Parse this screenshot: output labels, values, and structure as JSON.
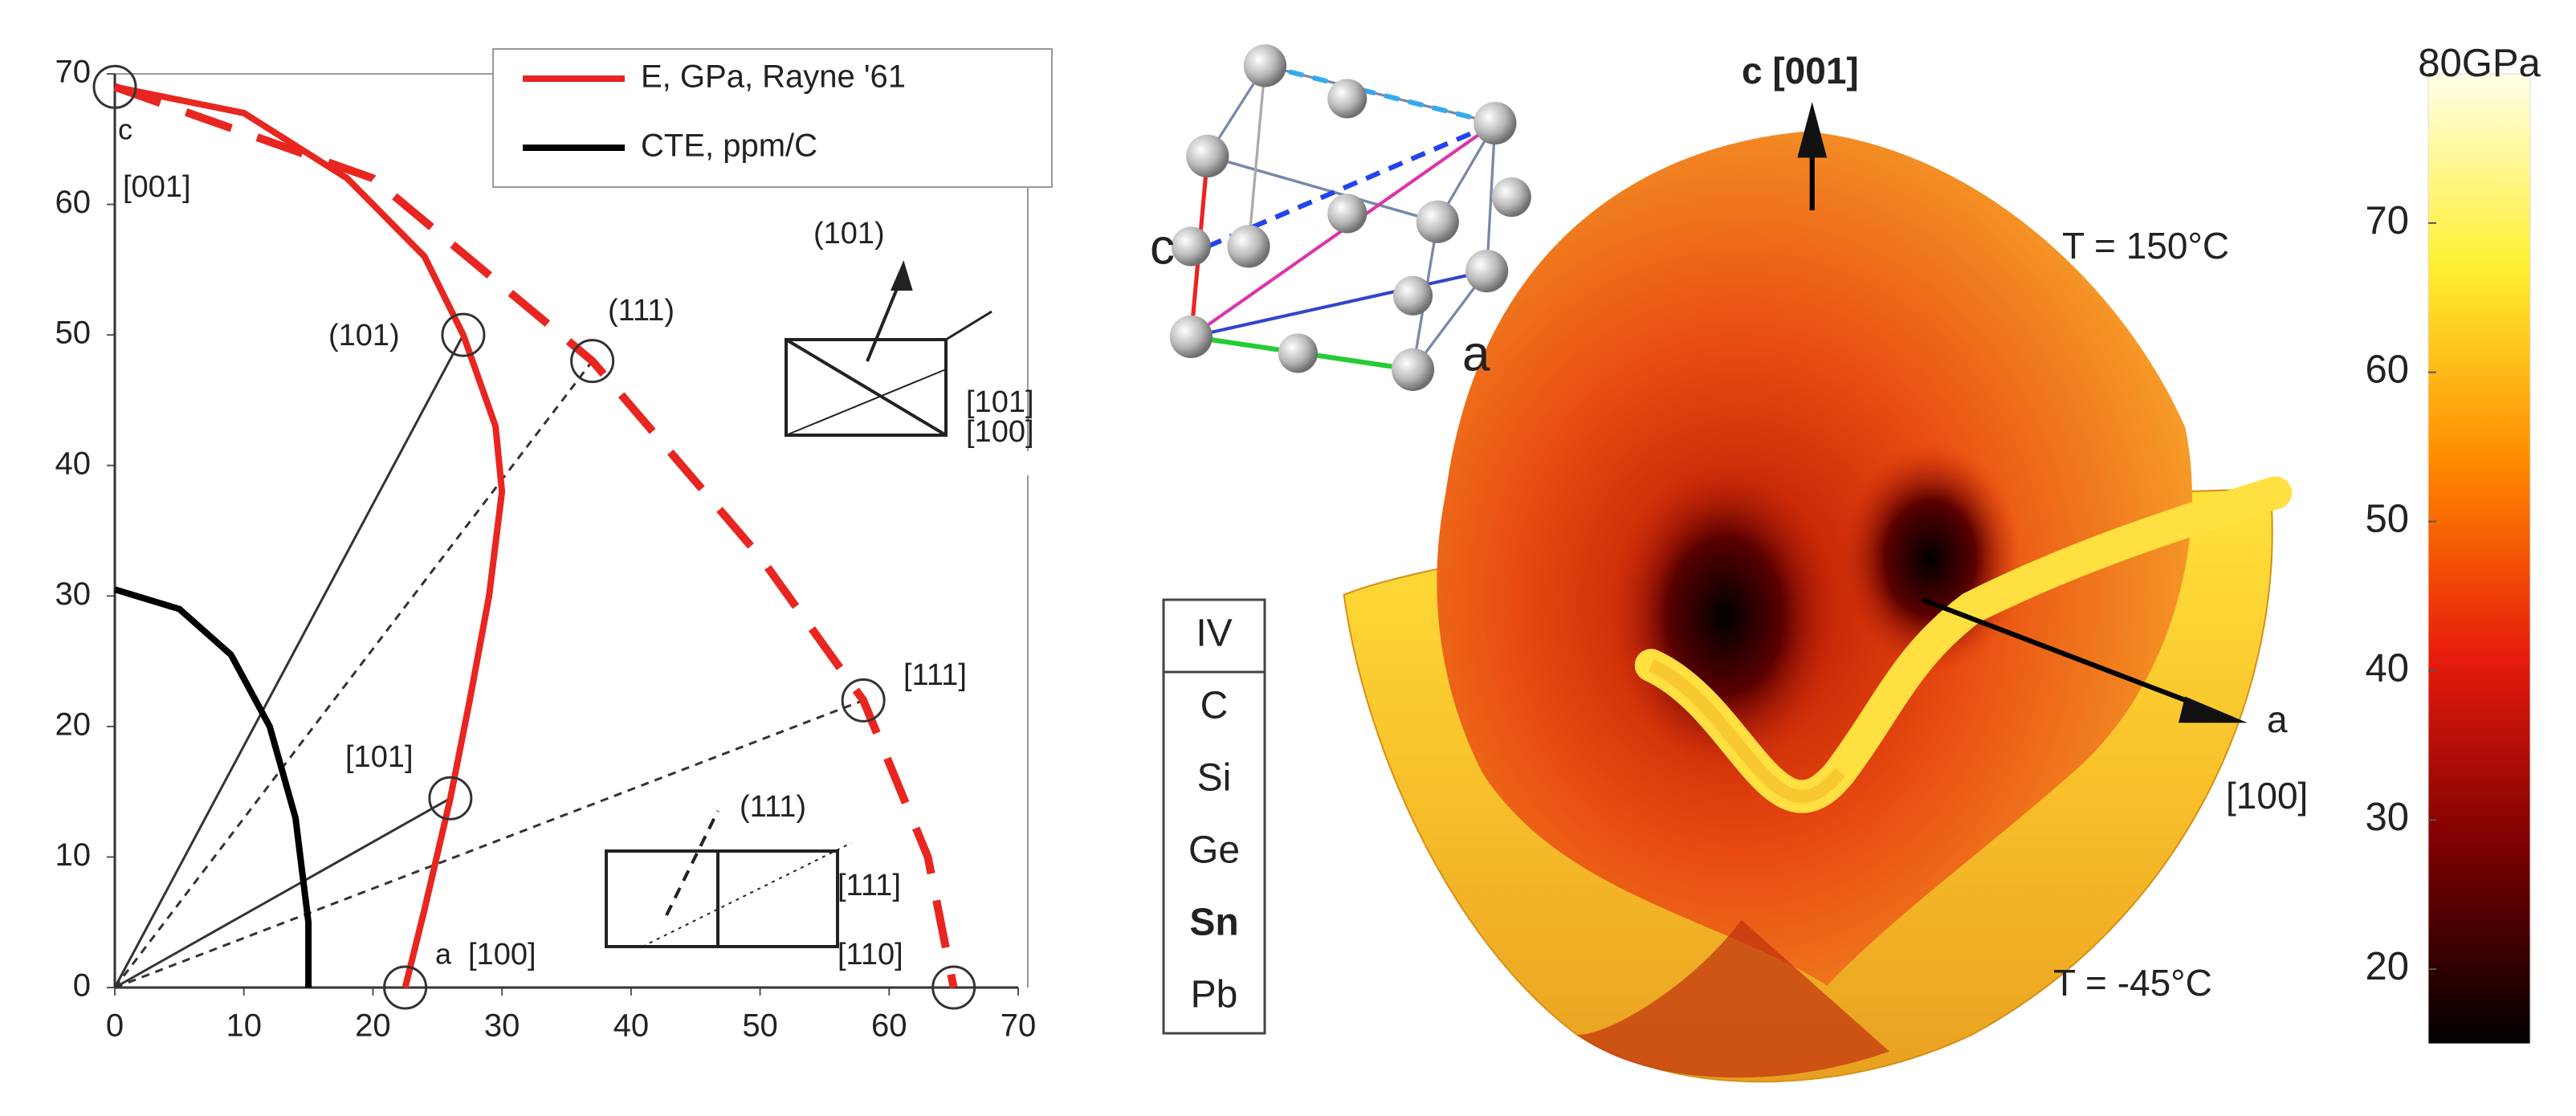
{
  "chart_data": [
    {
      "type": "line",
      "xlim": [
        0,
        70
      ],
      "ylim": [
        0,
        70
      ],
      "xticks": [
        0,
        10,
        20,
        30,
        40,
        50,
        60,
        70
      ],
      "yticks": [
        0,
        10,
        20,
        30,
        40,
        50,
        60,
        70
      ],
      "legend": "upper right",
      "series": [
        {
          "name": "E, GPa, Rayne '61",
          "color": "#e8261f",
          "x": [
            0,
            10,
            18,
            24,
            27,
            29.5,
            30,
            29,
            27.5,
            26,
            24,
            22.5
          ],
          "values": [
            69,
            67,
            62,
            56,
            50,
            43,
            38,
            30,
            22,
            14.5,
            6,
            0
          ]
        },
        {
          "name": "CTE, ppm/C",
          "color": "#000000",
          "x": [
            0,
            5,
            9,
            12,
            14,
            15,
            15
          ],
          "values": [
            30.5,
            29,
            25.5,
            20,
            13,
            5,
            0
          ]
        },
        {
          "color": "#e8261f",
          "dash": true,
          "x": [
            0,
            20,
            37,
            50,
            58,
            63,
            65
          ],
          "values": [
            69,
            62,
            48,
            33,
            22,
            10,
            0
          ]
        }
      ],
      "markers": {
        "x": [
          0,
          27,
          37,
          58,
          26,
          22.5,
          65
        ],
        "y": [
          69,
          50,
          48,
          22,
          14.5,
          0,
          0
        ],
        "solid_rays": [
          1,
          4
        ],
        "dashed_rays": [
          2,
          3
        ]
      },
      "annotations": [
        "c",
        "[001]",
        "(101)",
        "(111)",
        "[101]",
        "a",
        "[100]",
        "[110]",
        "[111]",
        "(111)",
        "[111]",
        "(101)",
        "[101]",
        "[100]"
      ]
    },
    {
      "type": "surface",
      "annotations": [
        "c [001]",
        "T = 150°C",
        "a",
        "[100]",
        "T = -45°C"
      ],
      "crystal_labels": [
        "c",
        "a"
      ],
      "colorbar": {
        "ylim": [
          15,
          80
        ],
        "yticks": [
          20,
          30,
          40,
          50,
          60,
          70,
          {
            "value": 80,
            "label": "80GPa"
          }
        ],
        "colormap": [
          "#000000",
          "#7a0000",
          "#e81c0c",
          "#ff8a00",
          "#ffef30",
          "#ffffe8"
        ]
      },
      "table": {
        "header": "IV",
        "rows": [
          "C",
          "Si",
          "Ge",
          "Sn",
          "Pb"
        ],
        "highlight_index": 3,
        "highlight_color": "#e02020"
      }
    }
  ]
}
